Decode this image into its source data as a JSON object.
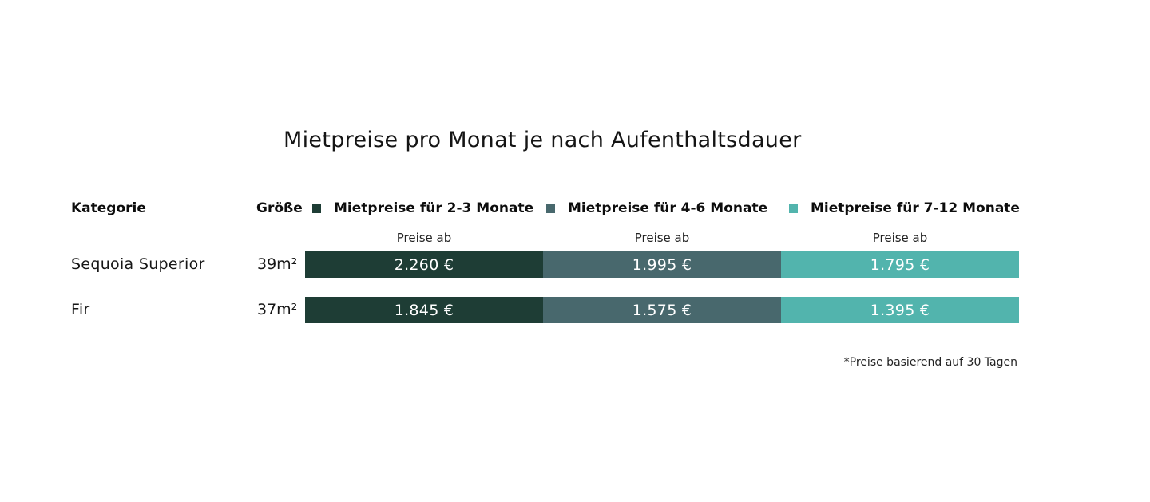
{
  "title": "Mietpreise pro Monat je nach Aufenthaltsdauer",
  "colors": {
    "tier_1": "#1e3d35",
    "tier_2": "#48686d",
    "tier_3": "#52b4ad"
  },
  "headers": {
    "kategorie": "Kategorie",
    "groesse": "Größe"
  },
  "legend": [
    {
      "label": "Mietpreise für 2-3 Monate"
    },
    {
      "label": "Mietpreise für 4-6 Monate"
    },
    {
      "label": "Mietpreise für 7-12 Monate"
    }
  ],
  "subheaders": [
    "Preise ab",
    "Preise ab",
    "Preise ab"
  ],
  "rows": [
    {
      "category": "Sequoia Superior",
      "size": "39m²",
      "prices": [
        "2.260 €",
        "1.995 €",
        "1.795 €"
      ]
    },
    {
      "category": "Fir",
      "size": "37m²",
      "prices": [
        "1.845 €",
        "1.575 €",
        "1.395 €"
      ]
    }
  ],
  "footnote": "*Preise basierend auf 30 Tagen"
}
